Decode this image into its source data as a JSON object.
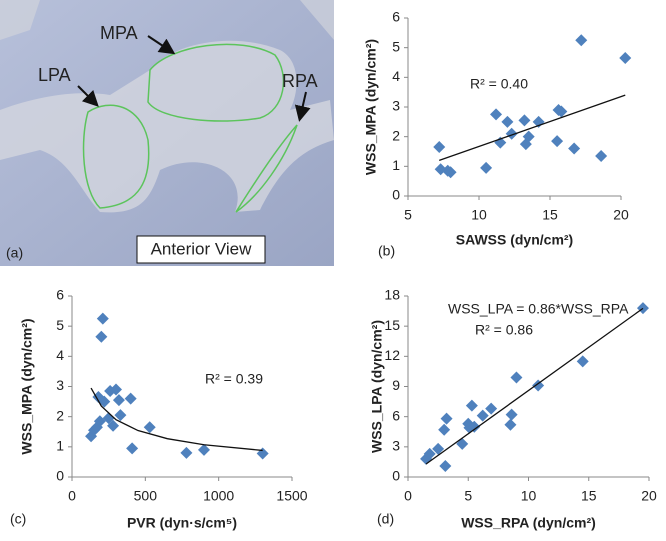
{
  "panel_a": {
    "labels": [
      "MPA",
      "LPA",
      "RPA"
    ],
    "view": "Anterior View",
    "caption": "(a)"
  },
  "chart_data": [
    {
      "type": "scatter",
      "caption": "(b)",
      "x_label": "SAWSS (dyn/cm²)",
      "y_label": "WSS_MPA (dyn/cm²)",
      "annotations": [
        "R² = 0.40"
      ],
      "color": "#4f81bd",
      "xlim": [
        5,
        20
      ],
      "xticks": [
        5,
        10,
        15,
        20
      ],
      "ylim": [
        0,
        6
      ],
      "yticks": [
        0,
        1,
        2,
        3,
        4,
        5,
        6
      ],
      "x": [
        7.2,
        7.3,
        7.8,
        8.0,
        10.5,
        11.2,
        11.5,
        12.0,
        12.3,
        13.2,
        13.3,
        13.5,
        14.2,
        15.5,
        15.6,
        15.8,
        16.7,
        17.2,
        18.6,
        20.3
      ],
      "values": [
        1.65,
        0.9,
        0.85,
        0.8,
        0.95,
        2.75,
        1.8,
        2.5,
        2.1,
        2.55,
        1.75,
        2.0,
        2.5,
        1.85,
        2.9,
        2.85,
        1.6,
        5.25,
        1.35,
        4.65
      ],
      "trendline": {
        "x": [
          7.2,
          20.3
        ],
        "values": [
          1.2,
          3.4
        ]
      }
    },
    {
      "type": "scatter",
      "caption": "(c)",
      "x_label": "PVR (dyn·s/cm⁵)",
      "y_label": "WSS_MPA (dyn/cm²)",
      "annotations": [
        "R² = 0.39"
      ],
      "color": "#4f81bd",
      "xlim": [
        0,
        1500
      ],
      "xticks": [
        0,
        500,
        1000,
        1500
      ],
      "ylim": [
        0,
        6
      ],
      "yticks": [
        0,
        1,
        2,
        3,
        4,
        5,
        6
      ],
      "x": [
        130,
        150,
        170,
        180,
        190,
        200,
        210,
        220,
        250,
        260,
        280,
        300,
        320,
        330,
        400,
        410,
        530,
        780,
        900,
        1300
      ],
      "values": [
        1.35,
        1.55,
        1.65,
        2.65,
        1.85,
        4.65,
        5.25,
        2.5,
        1.95,
        2.85,
        1.7,
        2.9,
        2.55,
        2.05,
        2.6,
        0.95,
        1.65,
        0.8,
        0.9,
        0.78
      ],
      "trendline": {
        "x": [
          130,
          200,
          300,
          450,
          650,
          900,
          1300
        ],
        "values": [
          2.95,
          2.35,
          1.9,
          1.54,
          1.27,
          1.07,
          0.88
        ]
      }
    },
    {
      "type": "scatter",
      "caption": "(d)",
      "x_label": "WSS_RPA (dyn/cm²)",
      "y_label": "WSS_LPA (dyn/cm²)",
      "annotations": [
        "WSS_LPA = 0.86*WSS_RPA",
        "R² = 0.86"
      ],
      "color": "#4f81bd",
      "xlim": [
        0,
        20
      ],
      "xticks": [
        0,
        5,
        10,
        15,
        20
      ],
      "ylim": [
        0,
        18
      ],
      "yticks": [
        0,
        3,
        6,
        9,
        12,
        15,
        18
      ],
      "x": [
        1.5,
        1.8,
        2.5,
        3.0,
        3.1,
        3.2,
        4.5,
        5.0,
        5.1,
        5.3,
        5.5,
        6.2,
        6.9,
        8.5,
        8.6,
        9.0,
        10.8,
        14.5,
        19.5
      ],
      "values": [
        1.8,
        2.3,
        2.8,
        4.7,
        1.1,
        5.8,
        3.3,
        5.3,
        4.9,
        7.1,
        5.0,
        6.1,
        6.8,
        5.2,
        6.2,
        9.9,
        9.1,
        11.5,
        16.8
      ],
      "trendline": {
        "x": [
          1.5,
          19.5
        ],
        "values": [
          1.29,
          16.77
        ]
      }
    }
  ]
}
